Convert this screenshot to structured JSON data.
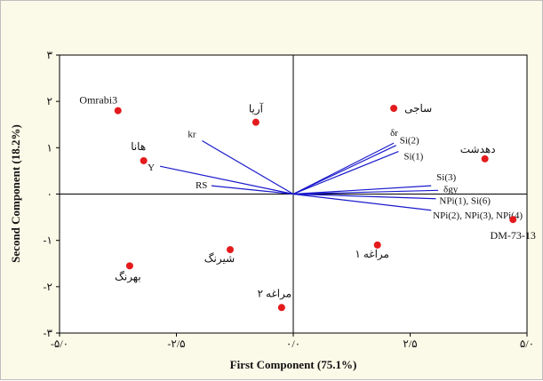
{
  "chart_data": {
    "type": "scatter",
    "title": "",
    "xlabel": "First Component (75.1%)",
    "ylabel": "Second Component (18.2%)",
    "xlim": [
      -5,
      5
    ],
    "ylim": [
      -3,
      3
    ],
    "x_ticks": [
      {
        "value": -5,
        "label": "-۵/۰"
      },
      {
        "value": -2.5,
        "label": "-۲/۵"
      },
      {
        "value": 0,
        "label": "۰/۰"
      },
      {
        "value": 2.5,
        "label": "۲/۵"
      },
      {
        "value": 5,
        "label": "۵/۰"
      }
    ],
    "y_ticks": [
      {
        "value": 3,
        "label": "۳"
      },
      {
        "value": 2,
        "label": "۲"
      },
      {
        "value": 1,
        "label": "۱"
      },
      {
        "value": 0,
        "label": "۰"
      },
      {
        "value": -1,
        "label": "-۱"
      },
      {
        "value": -2,
        "label": "-۲"
      },
      {
        "value": -3,
        "label": "-۳"
      }
    ],
    "reference_lines": {
      "x": 0,
      "y": 0
    },
    "grid": false,
    "point_color": "#e41a1c",
    "vector_color": "#1a1acc",
    "points": [
      {
        "label": "Omrabi3",
        "x": -3.75,
        "y": 1.8
      },
      {
        "label": "آریا",
        "x": -0.8,
        "y": 1.55
      },
      {
        "label": "ساجی",
        "x": 2.15,
        "y": 1.85
      },
      {
        "label": "هانا",
        "x": -3.2,
        "y": 0.72
      },
      {
        "label": "دهدشت",
        "x": 4.1,
        "y": 0.76
      },
      {
        "label": "DM-73-13",
        "x": 4.7,
        "y": -0.55
      },
      {
        "label": "شیرنگ",
        "x": -1.35,
        "y": -1.2
      },
      {
        "label": "بهرنگ",
        "x": -3.5,
        "y": -1.55
      },
      {
        "label": "مراغه ۱",
        "x": 1.8,
        "y": -1.1
      },
      {
        "label": "مراغه ۲",
        "x": -0.25,
        "y": -2.45
      }
    ],
    "vectors": [
      {
        "label": "kr",
        "x": -1.95,
        "y": 1.15
      },
      {
        "label": "Y",
        "x": -2.85,
        "y": 0.6
      },
      {
        "label": "RS",
        "x": -1.75,
        "y": 0.18
      },
      {
        "label": "δr",
        "x": 2.15,
        "y": 1.1
      },
      {
        "label": "Si(2)",
        "x": 2.2,
        "y": 1.05
      },
      {
        "label": "Si(1)",
        "x": 2.25,
        "y": 0.92
      },
      {
        "label": "Si(3)",
        "x": 2.95,
        "y": 0.18
      },
      {
        "label": "δgy",
        "x": 3.1,
        "y": 0.08
      },
      {
        "label": "NPi(1), Si(6)",
        "x": 3.05,
        "y": -0.1
      },
      {
        "label": "NPi(2), NPi(3), NPi(4)",
        "x": 2.95,
        "y": -0.35
      }
    ]
  }
}
